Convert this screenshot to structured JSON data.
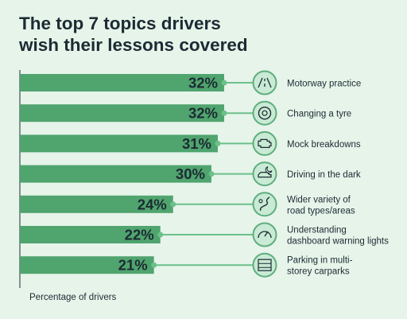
{
  "title_line1": "The top 7 topics drivers",
  "title_line2": "wish their lessons covered",
  "footer": "Percentage of drivers",
  "colors": {
    "background": "#e6f4ea",
    "bar": "#50a46e",
    "connector": "#6cc08a",
    "icon_fill": "#c9ead4",
    "icon_ring": "#5fae7e",
    "text": "#1c2b33"
  },
  "chart_data": {
    "type": "bar",
    "orientation": "horizontal",
    "categories": [
      "Motorway practice",
      "Changing a tyre",
      "Mock breakdowns",
      "Driving in the dark",
      "Wider variety of road types/areas",
      "Understanding dashboard warning lights",
      "Parking in multi-storey carparks"
    ],
    "values": [
      32,
      32,
      31,
      30,
      24,
      22,
      21
    ],
    "value_labels": [
      "32%",
      "32%",
      "31%",
      "30%",
      "24%",
      "22%",
      "21%"
    ],
    "label_lines": [
      [
        "Motorway practice"
      ],
      [
        "Changing a tyre"
      ],
      [
        "Mock breakdowns"
      ],
      [
        "Driving in the dark"
      ],
      [
        "Wider variety of",
        "road types/areas"
      ],
      [
        "Understanding",
        "dashboard warning lights"
      ],
      [
        "Parking in multi-",
        "storey carparks"
      ]
    ],
    "icons": [
      "motorway-icon",
      "tyre-icon",
      "engine-icon",
      "night-car-icon",
      "winding-road-icon",
      "dashboard-gauge-icon",
      "multistorey-carpark-icon"
    ],
    "xlabel": "Percentage of drivers",
    "xlim": [
      0,
      32
    ],
    "grid": false,
    "legend": "none"
  }
}
